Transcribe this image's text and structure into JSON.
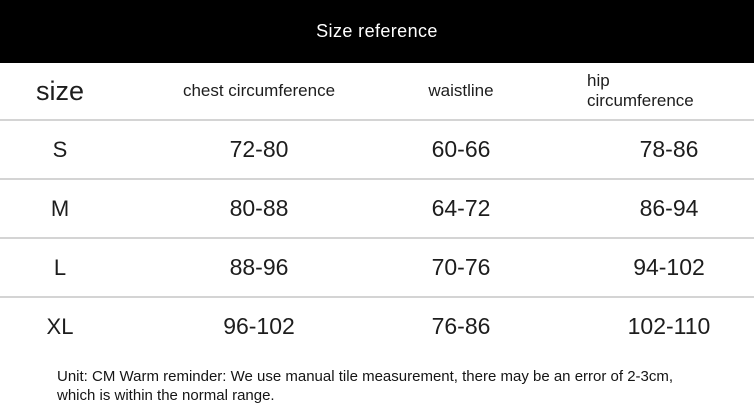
{
  "title_bar": {
    "title": "Size reference"
  },
  "table": {
    "columns": [
      {
        "id": "size",
        "label": "size"
      },
      {
        "id": "chest",
        "label": "chest circumference"
      },
      {
        "id": "waistline",
        "label": "waistline"
      },
      {
        "id": "hip",
        "label": "hip circumference"
      }
    ],
    "rows": [
      {
        "size": "S",
        "chest": "72-80",
        "waistline": "60-66",
        "hip": "78-86"
      },
      {
        "size": "M",
        "chest": "80-88",
        "waistline": "64-72",
        "hip": "86-94"
      },
      {
        "size": "L",
        "chest": "88-96",
        "waistline": "70-76",
        "hip": "94-102"
      },
      {
        "size": "XL",
        "chest": "96-102",
        "waistline": "76-86",
        "hip": "102-110"
      }
    ]
  },
  "footer": {
    "note": "Unit: CM Warm reminder: We use manual tile measurement, there may be an error of 2-3cm, which is within the normal range."
  },
  "colors": {
    "title_bar_bg": "#000000",
    "title_text": "#ffffff",
    "table_text": "#1d1d1d",
    "divider": "#d4d4d4",
    "background": "#ffffff"
  },
  "chart_data": {
    "type": "table",
    "title": "Size reference",
    "unit": "CM",
    "columns": [
      "size",
      "chest circumference",
      "waistline",
      "hip circumference"
    ],
    "rows": [
      [
        "S",
        "72-80",
        "60-66",
        "78-86"
      ],
      [
        "M",
        "80-88",
        "64-72",
        "86-94"
      ],
      [
        "L",
        "88-96",
        "70-76",
        "94-102"
      ],
      [
        "XL",
        "96-102",
        "76-86",
        "102-110"
      ]
    ],
    "note": "Unit: CM Warm reminder: We use manual tile measurement, there may be an error of 2-3cm, which is within the normal range."
  }
}
